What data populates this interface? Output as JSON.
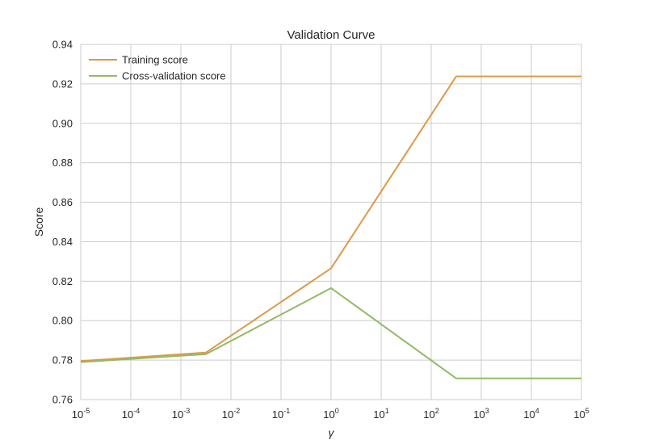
{
  "chart_data": {
    "type": "line",
    "title": "Validation Curve",
    "xlabel": "γ",
    "ylabel": "Score",
    "xscale": "log",
    "xlim": [
      1e-05,
      100000
    ],
    "ylim": [
      0.76,
      0.94
    ],
    "grid": true,
    "legend_position": "top-left",
    "x_ticks": [
      {
        "value": 1e-05,
        "base": "10",
        "exp": "-5"
      },
      {
        "value": 0.0001,
        "base": "10",
        "exp": "-4"
      },
      {
        "value": 0.001,
        "base": "10",
        "exp": "-3"
      },
      {
        "value": 0.01,
        "base": "10",
        "exp": "-2"
      },
      {
        "value": 0.1,
        "base": "10",
        "exp": "-1"
      },
      {
        "value": 1,
        "base": "10",
        "exp": "0"
      },
      {
        "value": 10,
        "base": "10",
        "exp": "1"
      },
      {
        "value": 100,
        "base": "10",
        "exp": "2"
      },
      {
        "value": 1000,
        "base": "10",
        "exp": "3"
      },
      {
        "value": 10000,
        "base": "10",
        "exp": "4"
      },
      {
        "value": 100000,
        "base": "10",
        "exp": "5"
      }
    ],
    "y_ticks": [
      "0.76",
      "0.78",
      "0.80",
      "0.82",
      "0.84",
      "0.86",
      "0.88",
      "0.90",
      "0.92",
      "0.94"
    ],
    "x": [
      1e-05,
      0.00316,
      1,
      316,
      100000
    ],
    "series": [
      {
        "name": "Training score",
        "color": "#dd9a45",
        "values": [
          0.7795,
          0.7838,
          0.8265,
          0.9238,
          0.9238
        ]
      },
      {
        "name": "Cross-validation score",
        "color": "#92bb64",
        "values": [
          0.779,
          0.783,
          0.8165,
          0.7707,
          0.7707
        ]
      }
    ]
  }
}
